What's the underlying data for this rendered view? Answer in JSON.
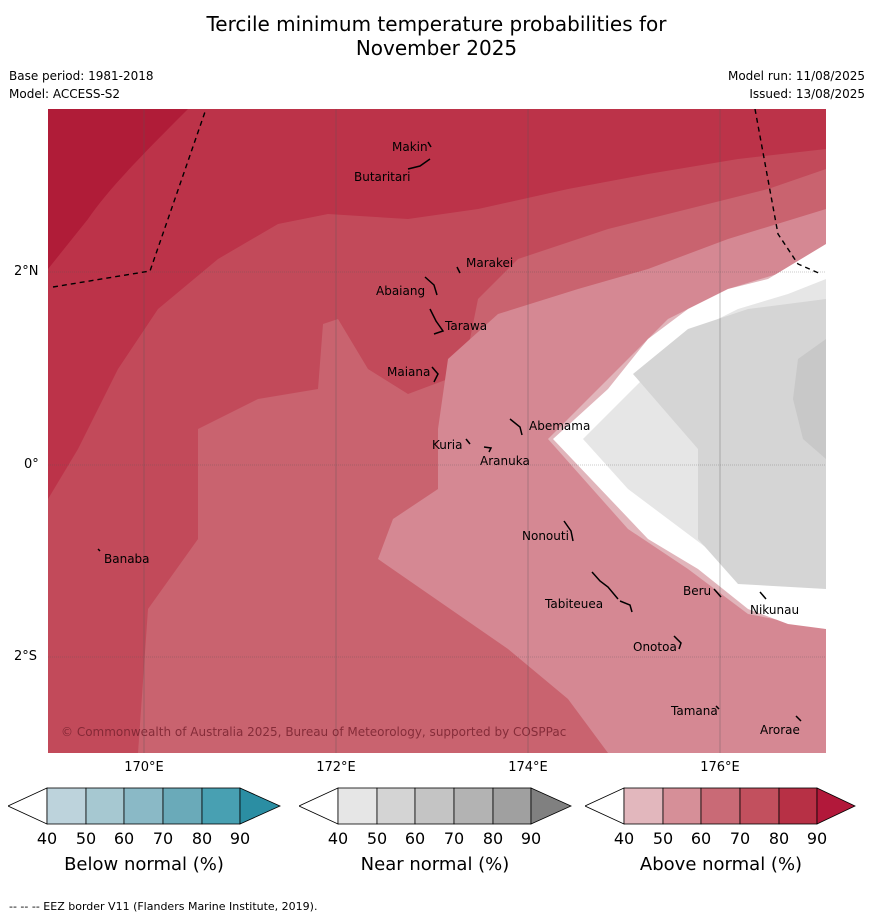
{
  "title_line1": "Tercile minimum temperature probabilities for",
  "title_line2": "November 2025",
  "base_period": "Base period: 1981-2018",
  "model": "Model: ACCESS-S2",
  "model_run": "Model run: 11/08/2025",
  "issued": "Issued: 13/08/2025",
  "lat_ticks": [
    "2°N",
    "0°",
    "2°S"
  ],
  "lon_ticks": [
    "170°E",
    "172°E",
    "174°E",
    "176°E"
  ],
  "islands": [
    {
      "name": "Makin"
    },
    {
      "name": "Butaritari"
    },
    {
      "name": "Marakei"
    },
    {
      "name": "Abaiang"
    },
    {
      "name": "Tarawa"
    },
    {
      "name": "Maiana"
    },
    {
      "name": "Abemama"
    },
    {
      "name": "Kuria"
    },
    {
      "name": "Aranuka"
    },
    {
      "name": "Nonouti"
    },
    {
      "name": "Banaba"
    },
    {
      "name": "Beru"
    },
    {
      "name": "Tabiteuea"
    },
    {
      "name": "Nikunau"
    },
    {
      "name": "Onotoa"
    },
    {
      "name": "Tamana"
    },
    {
      "name": "Arorae"
    }
  ],
  "copyright": "© Commonwealth of Australia 2025, Bureau of Meteorology, supported by COSPPac",
  "colorbars": [
    {
      "label": "Below normal (%)",
      "ticks": [
        "40",
        "50",
        "60",
        "70",
        "80",
        "90"
      ],
      "colors": [
        "#ffffff",
        "#bdd3dc",
        "#a6c8d1",
        "#8ab9c6",
        "#6aaab9",
        "#48a0b2",
        "#2b8ea3"
      ]
    },
    {
      "label": "Near normal (%)",
      "ticks": [
        "40",
        "50",
        "60",
        "70",
        "80",
        "90"
      ],
      "colors": [
        "#ffffff",
        "#e6e6e6",
        "#d4d4d4",
        "#c4c4c4",
        "#b3b3b3",
        "#a0a0a0",
        "#808080"
      ]
    },
    {
      "label": "Above normal (%)",
      "ticks": [
        "40",
        "50",
        "60",
        "70",
        "80",
        "90"
      ],
      "colors": [
        "#ffffff",
        "#e2b7bd",
        "#d68f98",
        "#c96a76",
        "#c2505e",
        "#b73045",
        "#b2183a"
      ]
    }
  ],
  "footer": "--  --  -- EEZ border V11 (Flanders Marine Institute, 2019)."
}
